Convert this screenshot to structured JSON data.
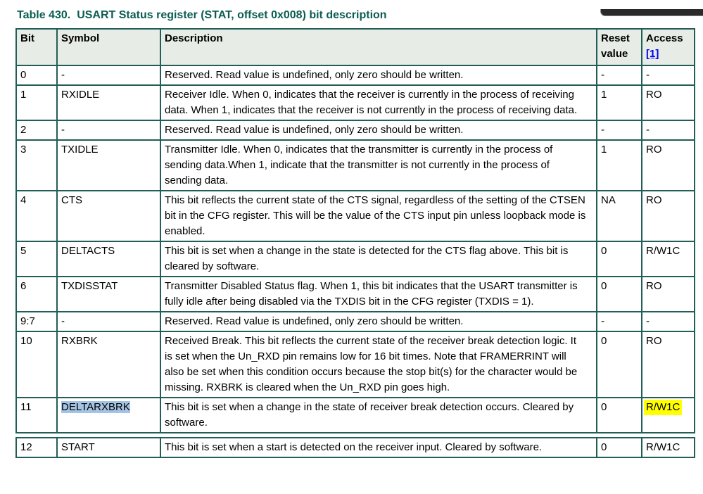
{
  "title": {
    "label": "Table 430.",
    "text": "USART Status register (STAT, offset 0x008) bit description"
  },
  "colors": {
    "title_text": "#0B5D51",
    "table_border": "#215E56",
    "header_background": "#E8ECE7",
    "link": "#0000EE",
    "selection_highlight_blue": "#A5C4E4",
    "search_highlight_yellow": "#FFFF00",
    "overlay_bar": "#2A2A2A"
  },
  "table": {
    "headers": {
      "bit": "Bit",
      "symbol": "Symbol",
      "description": "Description",
      "reset": "Reset value",
      "access": "Access",
      "access_footnote": "[1]"
    },
    "rows": [
      {
        "bit": "0",
        "symbol": "-",
        "description": "Reserved. Read value is undefined, only zero should be written.",
        "reset": "-",
        "access": "-"
      },
      {
        "bit": "1",
        "symbol": "RXIDLE",
        "description": "Receiver Idle. When 0, indicates that the receiver is currently in the process of receiving data. When 1, indicates that the receiver is not currently in the process of receiving data.",
        "reset": "1",
        "access": "RO"
      },
      {
        "bit": "2",
        "symbol": "-",
        "description": "Reserved. Read value is undefined, only zero should be written.",
        "reset": "-",
        "access": "-"
      },
      {
        "bit": "3",
        "symbol": "TXIDLE",
        "description": "Transmitter Idle. When 0, indicates that the transmitter is currently in the process of sending data.When 1, indicate that the transmitter is not currently in the process of sending data.",
        "reset": "1",
        "access": "RO"
      },
      {
        "bit": "4",
        "symbol": "CTS",
        "description": "This bit reflects the current state of the CTS signal, regardless of the setting of the CTSEN bit in the CFG register. This will be the value of the CTS input pin unless loopback mode is enabled.",
        "reset": "NA",
        "access": "RO"
      },
      {
        "bit": "5",
        "symbol": "DELTACTS",
        "description": "This bit is set when a change in the state is detected for the CTS flag above. This bit is cleared by software.",
        "reset": "0",
        "access": "R/W1C"
      },
      {
        "bit": "6",
        "symbol": "TXDISSTAT",
        "description": "Transmitter Disabled Status flag. When 1, this bit indicates that the USART transmitter is fully idle after being disabled via the TXDIS bit in the CFG register (TXDIS = 1).",
        "reset": "0",
        "access": "RO"
      },
      {
        "bit": "9:7",
        "symbol": "-",
        "description": "Reserved. Read value is undefined, only zero should be written.",
        "reset": "-",
        "access": "-"
      },
      {
        "bit": "10",
        "symbol": "RXBRK",
        "description": "Received Break. This bit reflects the current state of the receiver break detection logic. It is set when the Un_RXD pin remains low for 16 bit times. Note that FRAMERRINT will also be set when this condition occurs because the stop bit(s) for the character would be missing. RXBRK is cleared when the Un_RXD pin goes high.",
        "reset": "0",
        "access": "RO"
      },
      {
        "bit": "11",
        "symbol": "DELTARXBRK",
        "description": "This bit is set when a change in the state of receiver break detection occurs. Cleared by software.",
        "reset": "0",
        "access": "R/W1C"
      }
    ],
    "partial_row": {
      "bit": "12",
      "symbol": "START",
      "description": "This bit is set when a start is detected on the receiver input. Cleared by software.",
      "reset": "0",
      "access": "R/W1C"
    }
  }
}
